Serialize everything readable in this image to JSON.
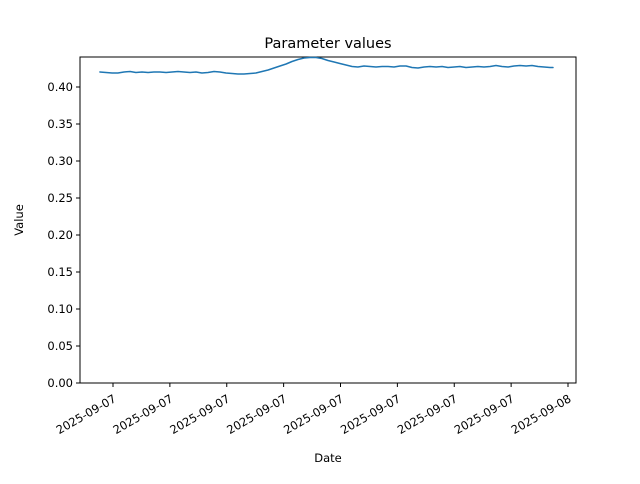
{
  "figure": {
    "title": "Parameter values",
    "xlabel": "Date",
    "ylabel": "Value"
  },
  "chart_data": {
    "type": "line",
    "title": "Parameter values",
    "xlabel": "Date",
    "ylabel": "Value",
    "grid": false,
    "legend": null,
    "line_color": "#1f77b4",
    "background_color": "#ffffff",
    "ylim": [
      0.0,
      0.4405
    ],
    "y_ticks": [
      0.0,
      0.05,
      0.1,
      0.15,
      0.2,
      0.25,
      0.3,
      0.35,
      0.4
    ],
    "x_tick_hours": [
      0,
      3,
      6,
      9,
      12,
      15,
      18,
      21,
      24
    ],
    "x_tick_labels": [
      "2025-09-07",
      "2025-09-07",
      "2025-09-07",
      "2025-09-07",
      "2025-09-07",
      "2025-09-07",
      "2025-09-07",
      "2025-09-07",
      "2025-09-08"
    ],
    "x_tick_rotation_deg": 30,
    "series": [
      {
        "name": "Parameter values",
        "x_hours_from_2025_09_07_midnight": [
          -0.69,
          -0.37,
          -0.05,
          0.26,
          0.58,
          0.9,
          1.21,
          1.53,
          1.85,
          2.16,
          2.48,
          2.8,
          3.11,
          3.43,
          3.74,
          4.06,
          4.38,
          4.69,
          5.01,
          5.33,
          5.64,
          5.96,
          6.28,
          6.59,
          6.91,
          7.23,
          7.54,
          7.86,
          8.18,
          8.49,
          8.81,
          9.13,
          9.44,
          9.76,
          10.08,
          10.39,
          10.71,
          11.02,
          11.34,
          11.66,
          11.97,
          12.29,
          12.61,
          12.92,
          13.24,
          13.56,
          13.87,
          14.19,
          14.51,
          14.82,
          15.14,
          15.46,
          15.77,
          16.09,
          16.41,
          16.72,
          17.04,
          17.36,
          17.67,
          17.99,
          18.3,
          18.62,
          18.94,
          19.25,
          19.57,
          19.89,
          20.2,
          20.52,
          20.84,
          21.15,
          21.47,
          21.79,
          22.1,
          22.42,
          22.74,
          23.05,
          23.21
        ],
        "values": [
          0.4203,
          0.4196,
          0.4189,
          0.4189,
          0.4203,
          0.421,
          0.4196,
          0.4203,
          0.4196,
          0.4203,
          0.4203,
          0.4196,
          0.4203,
          0.421,
          0.4203,
          0.4196,
          0.4203,
          0.4189,
          0.4196,
          0.421,
          0.4203,
          0.4189,
          0.4182,
          0.4176,
          0.4176,
          0.4182,
          0.4189,
          0.421,
          0.423,
          0.4257,
          0.4284,
          0.4311,
          0.4345,
          0.4372,
          0.4392,
          0.4399,
          0.4399,
          0.4385,
          0.4358,
          0.4338,
          0.4318,
          0.4297,
          0.4277,
          0.427,
          0.4284,
          0.4277,
          0.427,
          0.4277,
          0.4277,
          0.427,
          0.4284,
          0.4284,
          0.4264,
          0.4257,
          0.427,
          0.4277,
          0.427,
          0.4277,
          0.4264,
          0.427,
          0.4277,
          0.4264,
          0.427,
          0.4277,
          0.427,
          0.4277,
          0.4291,
          0.4277,
          0.427,
          0.4284,
          0.4291,
          0.4284,
          0.4291,
          0.4277,
          0.427,
          0.4264,
          0.4264
        ]
      }
    ]
  }
}
